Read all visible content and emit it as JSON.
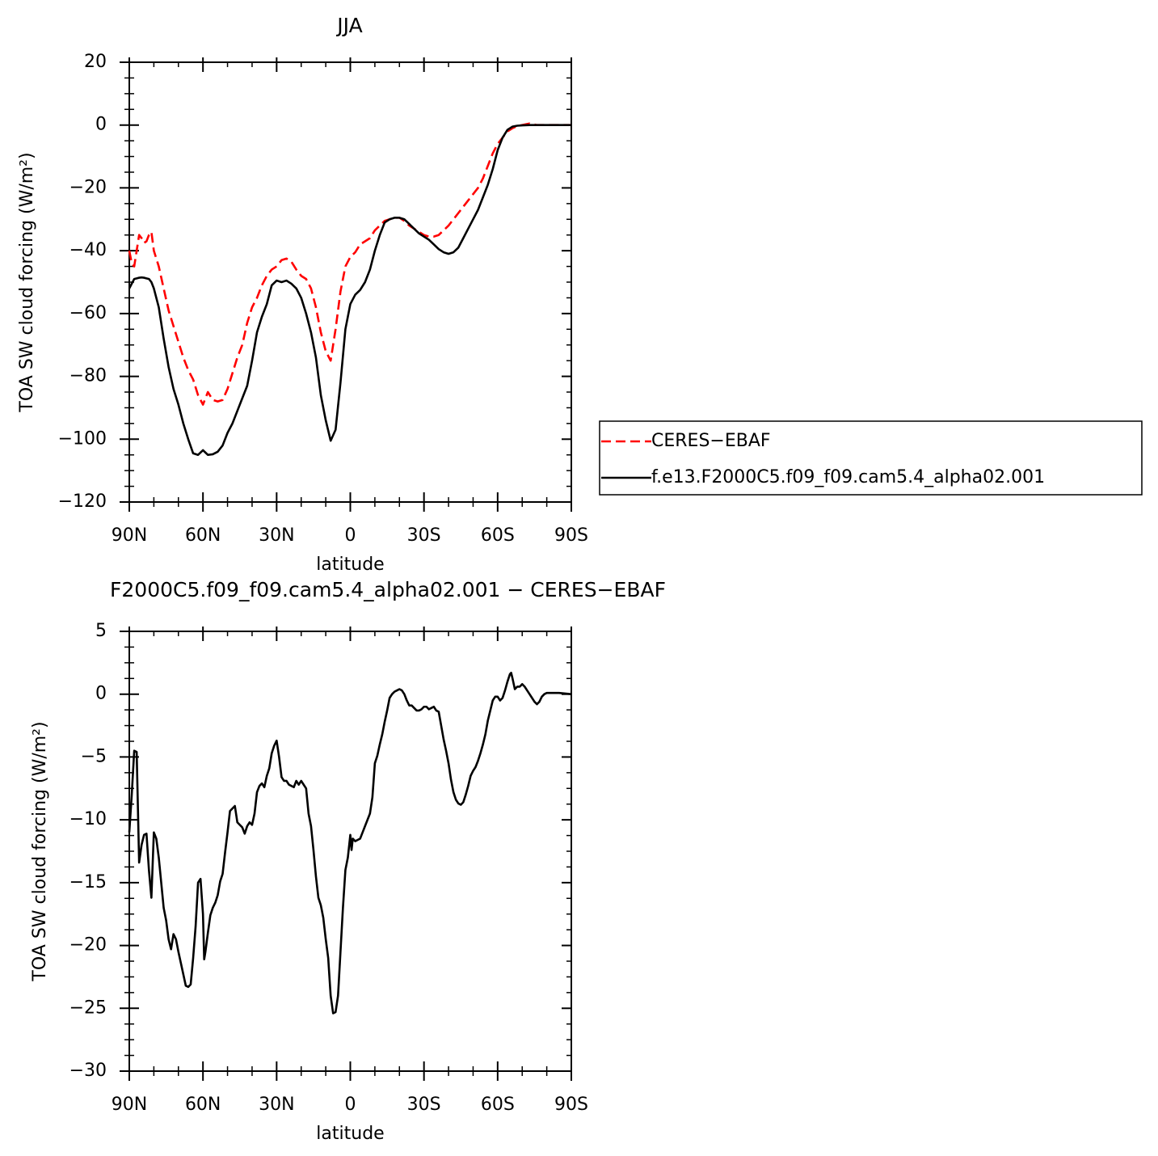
{
  "chart_data": [
    {
      "type": "line",
      "title": "JJA",
      "xlabel": "latitude",
      "ylabel": "TOA SW cloud forcing (W/m²)",
      "legend": "right",
      "xlim": [
        90,
        -90
      ],
      "xticks": [
        {
          "value": 90,
          "label": "90N"
        },
        {
          "value": 60,
          "label": "60N"
        },
        {
          "value": 30,
          "label": "30N"
        },
        0,
        {
          "value": -30,
          "label": "30S"
        },
        {
          "value": -60,
          "label": "60S"
        },
        {
          "value": -90,
          "label": "90S"
        }
      ],
      "ylim": [
        -120,
        20
      ],
      "yticks": [
        20,
        0,
        {
          "value": -20,
          "label": "−20"
        },
        {
          "value": -40,
          "label": "−40"
        },
        {
          "value": -60,
          "label": "−60"
        },
        {
          "value": -80,
          "label": "−80"
        },
        {
          "value": -100,
          "label": "−100"
        },
        {
          "value": -120,
          "label": "−120"
        }
      ],
      "x": [
        90,
        89,
        88,
        87,
        86,
        85,
        84,
        83,
        82,
        81,
        80,
        78,
        76,
        74,
        72,
        70,
        68,
        66,
        64,
        62,
        60,
        58,
        56,
        54,
        52,
        50,
        48,
        46,
        44,
        42,
        40,
        38,
        36,
        34,
        32,
        30,
        28,
        26,
        24,
        22,
        20,
        18,
        16,
        14,
        12,
        10,
        8,
        6,
        4,
        2,
        0,
        -2,
        -4,
        -6,
        -8,
        -10,
        -12,
        -14,
        -16,
        -18,
        -20,
        -22,
        -24,
        -26,
        -28,
        -30,
        -32,
        -34,
        -36,
        -38,
        -40,
        -42,
        -44,
        -46,
        -48,
        -50,
        -52,
        -54,
        -56,
        -58,
        -60,
        -62,
        -64,
        -66,
        -68,
        -70,
        -73,
        -76,
        -80,
        -90
      ],
      "series": [
        {
          "name": "CERES−EBAF",
          "color": "#ff0000",
          "line_style": "dashed",
          "values": [
            -40,
            -44,
            -45,
            -40,
            -35,
            -36,
            -37.5,
            -37,
            -35,
            -34,
            -40,
            -45,
            -52,
            -59,
            -64,
            -69,
            -74,
            -78,
            -81,
            -86,
            -89,
            -85,
            -87.5,
            -88,
            -87.5,
            -84,
            -79,
            -74,
            -70,
            -63,
            -58,
            -55,
            -51,
            -48,
            -46,
            -45,
            -43,
            -42.5,
            -43.5,
            -46,
            -48,
            -49,
            -52,
            -58,
            -66,
            -72,
            -75,
            -65,
            -53,
            -45,
            -42,
            -40.5,
            -38,
            -37,
            -36,
            -33.5,
            -32,
            -30.5,
            -30,
            -29.5,
            -29.5,
            -30.5,
            -32,
            -33,
            -34,
            -35,
            -35.5,
            -35.5,
            -35,
            -33.5,
            -32,
            -30,
            -28,
            -26,
            -24,
            -22,
            -20,
            -17,
            -13,
            -9,
            -6,
            -4,
            -2,
            -1,
            -0.3,
            0,
            0.5,
            0,
            0,
            0
          ]
        },
        {
          "name": "f.e13.F2000C5.f09_f09.cam5.4_alpha02.001",
          "color": "#000000",
          "line_style": "solid",
          "values": [
            -52,
            -50.5,
            -49,
            -48.8,
            -48.6,
            -48.5,
            -48.6,
            -48.8,
            -49,
            -50,
            -52,
            -58,
            -68,
            -77,
            -84,
            -89,
            -95,
            -100,
            -104.5,
            -105,
            -103.5,
            -105,
            -104.8,
            -104,
            -102,
            -98,
            -95,
            -91,
            -87,
            -83,
            -75,
            -66,
            -61,
            -57,
            -51,
            -49.5,
            -50,
            -49.5,
            -50.5,
            -52,
            -55,
            -60,
            -66,
            -74,
            -86,
            -94,
            -100.5,
            -97,
            -82,
            -65,
            -57,
            -54,
            -52.5,
            -50,
            -46,
            -40,
            -35,
            -31,
            -30,
            -29.5,
            -29.5,
            -30,
            -31.5,
            -33,
            -34.5,
            -35.5,
            -36.5,
            -38,
            -39.5,
            -40.5,
            -41,
            -40.5,
            -39,
            -36,
            -33,
            -30,
            -27,
            -23,
            -19,
            -14,
            -8,
            -4,
            -1.5,
            -0.5,
            -0.2,
            -0.1,
            0,
            0,
            0,
            0
          ]
        }
      ]
    },
    {
      "type": "line",
      "title": "F2000C5.f09_f09.cam5.4_alpha02.001 − CERES−EBAF",
      "xlabel": "latitude",
      "ylabel": "TOA SW cloud forcing (W/m²)",
      "xlim": [
        90,
        -90
      ],
      "xticks": [
        {
          "value": 90,
          "label": "90N"
        },
        {
          "value": 60,
          "label": "60N"
        },
        {
          "value": 30,
          "label": "30N"
        },
        0,
        {
          "value": -30,
          "label": "30S"
        },
        {
          "value": -60,
          "label": "60S"
        },
        {
          "value": -90,
          "label": "90S"
        }
      ],
      "ylim": [
        -30,
        5
      ],
      "yticks": [
        5,
        0,
        {
          "value": -5,
          "label": "−5"
        },
        {
          "value": -10,
          "label": "−10"
        },
        {
          "value": -15,
          "label": "−15"
        },
        {
          "value": -20,
          "label": "−20"
        },
        {
          "value": -25,
          "label": "−25"
        },
        {
          "value": -30,
          "label": "−30"
        }
      ],
      "color": "#000000",
      "x": [
        90,
        89,
        88,
        87,
        86,
        85,
        84,
        83,
        82,
        81,
        80,
        79,
        78,
        77,
        76,
        75,
        74,
        73,
        72,
        71,
        70,
        69,
        68,
        67,
        66,
        65,
        64,
        63,
        62,
        61,
        60,
        59.5,
        59,
        58,
        57,
        56,
        55,
        54,
        53,
        52,
        51,
        50,
        49,
        48,
        47,
        46,
        45,
        44,
        43,
        42,
        41,
        40,
        39,
        38,
        37,
        36,
        35,
        34,
        33,
        32,
        31,
        30,
        29,
        28,
        27,
        26,
        25,
        24,
        23,
        22,
        21,
        20,
        19,
        18,
        17,
        16,
        15,
        14,
        13,
        12,
        11,
        10,
        9,
        8,
        7,
        6,
        5,
        4,
        3,
        2,
        1,
        0,
        -0.5,
        -1,
        -2,
        -3,
        -4,
        -5,
        -6,
        -7,
        -8,
        -9,
        -10,
        -11,
        -12,
        -13,
        -14,
        -15,
        -16,
        -17,
        -18,
        -19,
        -20,
        -21,
        -22,
        -23,
        -24,
        -25,
        -26,
        -27,
        -28,
        -29,
        -30,
        -31,
        -32,
        -33,
        -34,
        -35,
        -36,
        -37,
        -38,
        -39,
        -40,
        -41,
        -42,
        -43,
        -44,
        -45,
        -46,
        -47,
        -48,
        -49,
        -50,
        -51,
        -52,
        -53,
        -54,
        -55,
        -56,
        -57,
        -58,
        -59,
        -60,
        -61,
        -62,
        -63,
        -64,
        -65,
        -65.5,
        -66,
        -67,
        -68,
        -69,
        -70,
        -71,
        -72,
        -73,
        -74,
        -75,
        -76,
        -77,
        -78,
        -79,
        -80,
        -82,
        -85,
        -90
      ],
      "values": [
        -11,
        -8,
        -4.5,
        -4.6,
        -13.4,
        -12,
        -11.2,
        -11.1,
        -14,
        -16.2,
        -11,
        -11.5,
        -13,
        -15,
        -17,
        -18,
        -19.5,
        -20.3,
        -19.1,
        -19.5,
        -20.5,
        -21.4,
        -22.3,
        -23.2,
        -23.3,
        -23.1,
        -21,
        -18.5,
        -15,
        -14.7,
        -17.5,
        -21.1,
        -20.5,
        -19,
        -17.6,
        -17,
        -16.6,
        -16,
        -14.9,
        -14.3,
        -12.6,
        -11,
        -9.3,
        -9.1,
        -8.9,
        -10.2,
        -10.4,
        -10.6,
        -11.1,
        -10.5,
        -10.2,
        -10.4,
        -9.5,
        -7.8,
        -7.3,
        -7.1,
        -7.4,
        -6.5,
        -5.9,
        -4.7,
        -4.1,
        -3.7,
        -5,
        -6.6,
        -6.9,
        -6.9,
        -7.2,
        -7.3,
        -7.4,
        -6.9,
        -7.2,
        -6.9,
        -7.2,
        -7.5,
        -9.5,
        -10.5,
        -12.4,
        -14.5,
        -16.2,
        -16.8,
        -17.8,
        -19.5,
        -21,
        -24,
        -25.4,
        -25.3,
        -24,
        -20.5,
        -17,
        -14,
        -13,
        -11.2,
        -12.4,
        -11.5,
        -11.7,
        -11.6,
        -11.5,
        -11,
        -10.5,
        -10,
        -9.5,
        -8.2,
        -5.5,
        -4.9,
        -4,
        -3.2,
        -2.2,
        -1.3,
        -0.3,
        0,
        0.2,
        0.3,
        0.4,
        0.3,
        0,
        -0.5,
        -0.9,
        -0.9,
        -1.1,
        -1.3,
        -1.3,
        -1.2,
        -1,
        -1,
        -1.2,
        -1.1,
        -1,
        -1.3,
        -1.4,
        -2.5,
        -3.6,
        -4.5,
        -5.5,
        -6.8,
        -7.8,
        -8.4,
        -8.7,
        -8.8,
        -8.6,
        -8,
        -7.3,
        -6.5,
        -6.1,
        -5.8,
        -5.3,
        -4.7,
        -4,
        -3.2,
        -2.1,
        -1.3,
        -0.5,
        -0.2,
        -0.2,
        -0.5,
        -0.3,
        0.3,
        1,
        1.6,
        1.7,
        1.3,
        0.4,
        0.6,
        0.6,
        0.8,
        0.6,
        0.3,
        0,
        -0.3,
        -0.6,
        -0.8,
        -0.6,
        -0.2,
        0,
        0.1,
        0.1,
        0.1,
        0
      ]
    }
  ]
}
